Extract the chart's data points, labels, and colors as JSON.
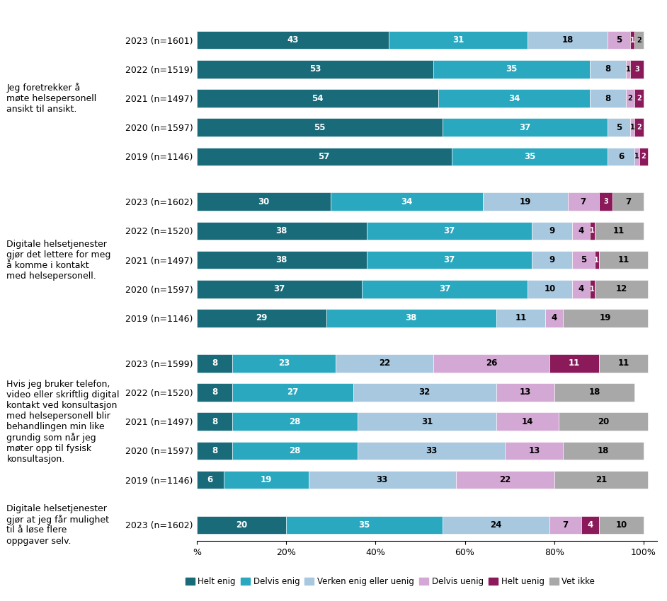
{
  "colors": [
    "#1a6b7a",
    "#29a8c0",
    "#a8c8e0",
    "#d4a8d4",
    "#8b1a5a",
    "#a8a8a8"
  ],
  "legend_labels": [
    "Helt enig",
    "Delvis enig",
    "Verken enig eller uenig",
    "Delvis uenig",
    "Helt uenig",
    "Vet ikke"
  ],
  "dark_segments": [
    0,
    1,
    4
  ],
  "groups": [
    {
      "label": "Jeg foretrekker å\nmøte helsepersonell\nansikt til ansikt.",
      "rows": [
        {
          "year": "2023 (n=1601)",
          "values": [
            43,
            31,
            18,
            5,
            1,
            2
          ]
        },
        {
          "year": "2022 (n=1519)",
          "values": [
            53,
            35,
            8,
            1,
            3,
            0
          ]
        },
        {
          "year": "2021 (n=1497)",
          "values": [
            54,
            34,
            8,
            2,
            2,
            0
          ]
        },
        {
          "year": "2020 (n=1597)",
          "values": [
            55,
            37,
            5,
            1,
            2,
            0
          ]
        },
        {
          "year": "2019 (n=1146)",
          "values": [
            57,
            35,
            6,
            1,
            2,
            0
          ]
        }
      ]
    },
    {
      "label": "Digitale helsetjenester\ngjør det lettere for meg\nå komme i kontakt\nmed helsepersonell.",
      "rows": [
        {
          "year": "2023 (n=1602)",
          "values": [
            30,
            34,
            19,
            7,
            3,
            7
          ]
        },
        {
          "year": "2022 (n=1520)",
          "values": [
            38,
            37,
            9,
            4,
            1,
            11
          ]
        },
        {
          "year": "2021 (n=1497)",
          "values": [
            38,
            37,
            9,
            5,
            1,
            11
          ]
        },
        {
          "year": "2020 (n=1597)",
          "values": [
            37,
            37,
            10,
            4,
            1,
            12
          ]
        },
        {
          "year": "2019 (n=1146)",
          "values": [
            29,
            38,
            11,
            4,
            0,
            19
          ]
        }
      ]
    },
    {
      "label": "Hvis jeg bruker telefon,\nvideo eller skriftlig digital\nkontakt ved konsultasjon\nmed helsepersonell blir\nbehandlingen min like\ngrundig som når jeg\nmøter opp til fysisk\nkonsultasjon.",
      "rows": [
        {
          "year": "2023 (n=1599)",
          "values": [
            8,
            23,
            22,
            26,
            11,
            11
          ]
        },
        {
          "year": "2022 (n=1520)",
          "values": [
            8,
            27,
            32,
            13,
            0,
            18
          ]
        },
        {
          "year": "2021 (n=1497)",
          "values": [
            8,
            28,
            31,
            14,
            0,
            20
          ]
        },
        {
          "year": "2020 (n=1597)",
          "values": [
            8,
            28,
            33,
            13,
            0,
            18
          ]
        },
        {
          "year": "2019 (n=1146)",
          "values": [
            6,
            19,
            33,
            22,
            0,
            21
          ]
        }
      ]
    },
    {
      "label": "Digitale helsetjenester\ngjør at jeg får mulighet\ntil å løse flere\noppgaver selv.",
      "rows": [
        {
          "year": "2023 (n=1602)",
          "values": [
            20,
            35,
            24,
            7,
            4,
            10
          ]
        }
      ]
    }
  ]
}
